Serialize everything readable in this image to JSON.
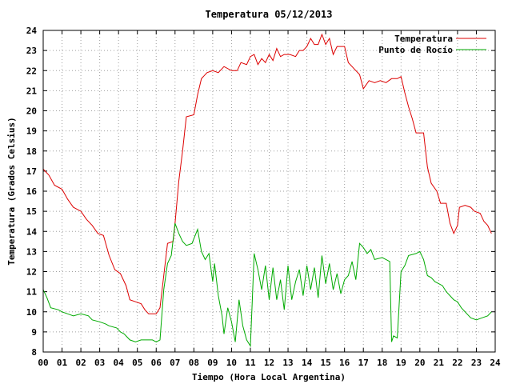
{
  "chart_data": {
    "type": "line",
    "title": "Temperatura 05/12/2013",
    "xlabel": "Tiempo (Hora Local Argentina)",
    "ylabel": "Temperatura (Grados Celsius)",
    "xlim": [
      0,
      24
    ],
    "ylim": [
      8,
      24
    ],
    "x_tick_labels": [
      "00",
      "01",
      "02",
      "03",
      "04",
      "05",
      "06",
      "07",
      "08",
      "09",
      "10",
      "11",
      "12",
      "13",
      "14",
      "15",
      "16",
      "17",
      "18",
      "19",
      "20",
      "21",
      "22",
      "23",
      "24"
    ],
    "y_tick_labels": [
      "8",
      "9",
      "10",
      "11",
      "12",
      "13",
      "14",
      "15",
      "16",
      "17",
      "18",
      "19",
      "20",
      "21",
      "22",
      "23",
      "24"
    ],
    "grid": true,
    "legend_position": "top-right",
    "series": [
      {
        "name": "Temperatura",
        "color": "#dd0000",
        "points": [
          [
            0,
            17.1
          ],
          [
            0.3,
            16.8
          ],
          [
            0.6,
            16.3
          ],
          [
            1.0,
            16.1
          ],
          [
            1.3,
            15.6
          ],
          [
            1.6,
            15.2
          ],
          [
            2.0,
            15.0
          ],
          [
            2.3,
            14.6
          ],
          [
            2.6,
            14.3
          ],
          [
            2.9,
            13.9
          ],
          [
            3.2,
            13.8
          ],
          [
            3.5,
            12.8
          ],
          [
            3.8,
            12.1
          ],
          [
            4.1,
            11.9
          ],
          [
            4.4,
            11.3
          ],
          [
            4.6,
            10.6
          ],
          [
            4.9,
            10.5
          ],
          [
            5.2,
            10.4
          ],
          [
            5.4,
            10.1
          ],
          [
            5.6,
            9.9
          ],
          [
            6.0,
            9.9
          ],
          [
            6.2,
            10.2
          ],
          [
            6.4,
            11.8
          ],
          [
            6.6,
            13.4
          ],
          [
            6.9,
            13.5
          ],
          [
            7.0,
            14.4
          ],
          [
            7.2,
            16.5
          ],
          [
            7.4,
            18.0
          ],
          [
            7.6,
            19.7
          ],
          [
            8.0,
            19.8
          ],
          [
            8.2,
            20.8
          ],
          [
            8.4,
            21.6
          ],
          [
            8.7,
            21.9
          ],
          [
            9.0,
            22.0
          ],
          [
            9.3,
            21.9
          ],
          [
            9.6,
            22.2
          ],
          [
            10.0,
            22.0
          ],
          [
            10.3,
            22.0
          ],
          [
            10.5,
            22.4
          ],
          [
            10.8,
            22.3
          ],
          [
            11.0,
            22.7
          ],
          [
            11.2,
            22.8
          ],
          [
            11.4,
            22.3
          ],
          [
            11.6,
            22.6
          ],
          [
            11.8,
            22.4
          ],
          [
            12.0,
            22.8
          ],
          [
            12.2,
            22.5
          ],
          [
            12.4,
            23.1
          ],
          [
            12.6,
            22.7
          ],
          [
            12.8,
            22.8
          ],
          [
            13.1,
            22.8
          ],
          [
            13.4,
            22.7
          ],
          [
            13.6,
            23.0
          ],
          [
            13.8,
            23.0
          ],
          [
            14.0,
            23.2
          ],
          [
            14.2,
            23.6
          ],
          [
            14.4,
            23.3
          ],
          [
            14.6,
            23.3
          ],
          [
            14.8,
            23.8
          ],
          [
            15.0,
            23.3
          ],
          [
            15.2,
            23.6
          ],
          [
            15.4,
            22.8
          ],
          [
            15.6,
            23.2
          ],
          [
            16.0,
            23.2
          ],
          [
            16.2,
            22.4
          ],
          [
            16.5,
            22.1
          ],
          [
            16.8,
            21.8
          ],
          [
            17.0,
            21.1
          ],
          [
            17.3,
            21.5
          ],
          [
            17.6,
            21.4
          ],
          [
            17.9,
            21.5
          ],
          [
            18.2,
            21.4
          ],
          [
            18.5,
            21.6
          ],
          [
            18.8,
            21.6
          ],
          [
            19.0,
            21.7
          ],
          [
            19.2,
            20.9
          ],
          [
            19.4,
            20.2
          ],
          [
            19.6,
            19.6
          ],
          [
            19.8,
            18.9
          ],
          [
            20.2,
            18.9
          ],
          [
            20.4,
            17.2
          ],
          [
            20.6,
            16.4
          ],
          [
            20.9,
            16.0
          ],
          [
            21.1,
            15.4
          ],
          [
            21.4,
            15.4
          ],
          [
            21.6,
            14.4
          ],
          [
            21.8,
            13.9
          ],
          [
            22.0,
            14.3
          ],
          [
            22.1,
            15.2
          ],
          [
            22.4,
            15.3
          ],
          [
            22.7,
            15.2
          ],
          [
            22.9,
            15.0
          ],
          [
            23.2,
            14.9
          ],
          [
            23.4,
            14.5
          ],
          [
            23.6,
            14.3
          ],
          [
            23.8,
            13.9
          ]
        ]
      },
      {
        "name": "Punto de Rocío",
        "color": "#00aa00",
        "points": [
          [
            0,
            11.1
          ],
          [
            0.2,
            10.7
          ],
          [
            0.4,
            10.2
          ],
          [
            0.8,
            10.1
          ],
          [
            1.0,
            10.0
          ],
          [
            1.3,
            9.9
          ],
          [
            1.6,
            9.8
          ],
          [
            2.0,
            9.9
          ],
          [
            2.4,
            9.8
          ],
          [
            2.6,
            9.6
          ],
          [
            3.0,
            9.5
          ],
          [
            3.3,
            9.4
          ],
          [
            3.5,
            9.3
          ],
          [
            3.9,
            9.2
          ],
          [
            4.1,
            9.0
          ],
          [
            4.3,
            8.9
          ],
          [
            4.6,
            8.6
          ],
          [
            4.9,
            8.5
          ],
          [
            5.2,
            8.6
          ],
          [
            5.5,
            8.6
          ],
          [
            5.8,
            8.6
          ],
          [
            6.0,
            8.5
          ],
          [
            6.2,
            8.6
          ],
          [
            6.4,
            11.1
          ],
          [
            6.6,
            12.4
          ],
          [
            6.8,
            12.8
          ],
          [
            7.0,
            14.4
          ],
          [
            7.2,
            13.9
          ],
          [
            7.4,
            13.5
          ],
          [
            7.6,
            13.3
          ],
          [
            7.9,
            13.4
          ],
          [
            8.2,
            14.1
          ],
          [
            8.4,
            13.0
          ],
          [
            8.6,
            12.6
          ],
          [
            8.8,
            12.9
          ],
          [
            9.0,
            11.5
          ],
          [
            9.1,
            12.4
          ],
          [
            9.3,
            10.8
          ],
          [
            9.5,
            9.8
          ],
          [
            9.6,
            8.9
          ],
          [
            9.8,
            10.2
          ],
          [
            10.0,
            9.5
          ],
          [
            10.2,
            8.5
          ],
          [
            10.4,
            10.6
          ],
          [
            10.6,
            9.3
          ],
          [
            10.8,
            8.6
          ],
          [
            11.0,
            8.3
          ],
          [
            11.1,
            10.5
          ],
          [
            11.2,
            12.9
          ],
          [
            11.4,
            12.1
          ],
          [
            11.6,
            11.1
          ],
          [
            11.8,
            12.3
          ],
          [
            12.0,
            10.6
          ],
          [
            12.2,
            12.2
          ],
          [
            12.4,
            10.6
          ],
          [
            12.6,
            11.6
          ],
          [
            12.8,
            10.1
          ],
          [
            13.0,
            12.3
          ],
          [
            13.2,
            10.6
          ],
          [
            13.4,
            11.5
          ],
          [
            13.6,
            12.1
          ],
          [
            13.8,
            10.8
          ],
          [
            14.0,
            12.3
          ],
          [
            14.2,
            11.1
          ],
          [
            14.4,
            12.2
          ],
          [
            14.6,
            10.7
          ],
          [
            14.8,
            12.8
          ],
          [
            15.0,
            11.4
          ],
          [
            15.2,
            12.4
          ],
          [
            15.4,
            11.1
          ],
          [
            15.6,
            11.9
          ],
          [
            15.8,
            10.9
          ],
          [
            16.0,
            11.6
          ],
          [
            16.2,
            11.8
          ],
          [
            16.4,
            12.5
          ],
          [
            16.6,
            11.6
          ],
          [
            16.8,
            13.4
          ],
          [
            17.0,
            13.2
          ],
          [
            17.2,
            12.9
          ],
          [
            17.4,
            13.1
          ],
          [
            17.6,
            12.6
          ],
          [
            18.0,
            12.7
          ],
          [
            18.2,
            12.6
          ],
          [
            18.4,
            12.5
          ],
          [
            18.5,
            8.5
          ],
          [
            18.6,
            8.8
          ],
          [
            18.8,
            8.7
          ],
          [
            19.0,
            12.0
          ],
          [
            19.2,
            12.3
          ],
          [
            19.4,
            12.8
          ],
          [
            19.8,
            12.9
          ],
          [
            20.0,
            13.0
          ],
          [
            20.2,
            12.6
          ],
          [
            20.4,
            11.8
          ],
          [
            20.6,
            11.7
          ],
          [
            20.8,
            11.5
          ],
          [
            21.2,
            11.3
          ],
          [
            21.4,
            11.0
          ],
          [
            21.6,
            10.8
          ],
          [
            21.8,
            10.6
          ],
          [
            22.0,
            10.5
          ],
          [
            22.2,
            10.2
          ],
          [
            22.5,
            9.9
          ],
          [
            22.7,
            9.7
          ],
          [
            23.0,
            9.6
          ],
          [
            23.3,
            9.7
          ],
          [
            23.6,
            9.8
          ],
          [
            23.8,
            10.0
          ]
        ]
      }
    ]
  }
}
